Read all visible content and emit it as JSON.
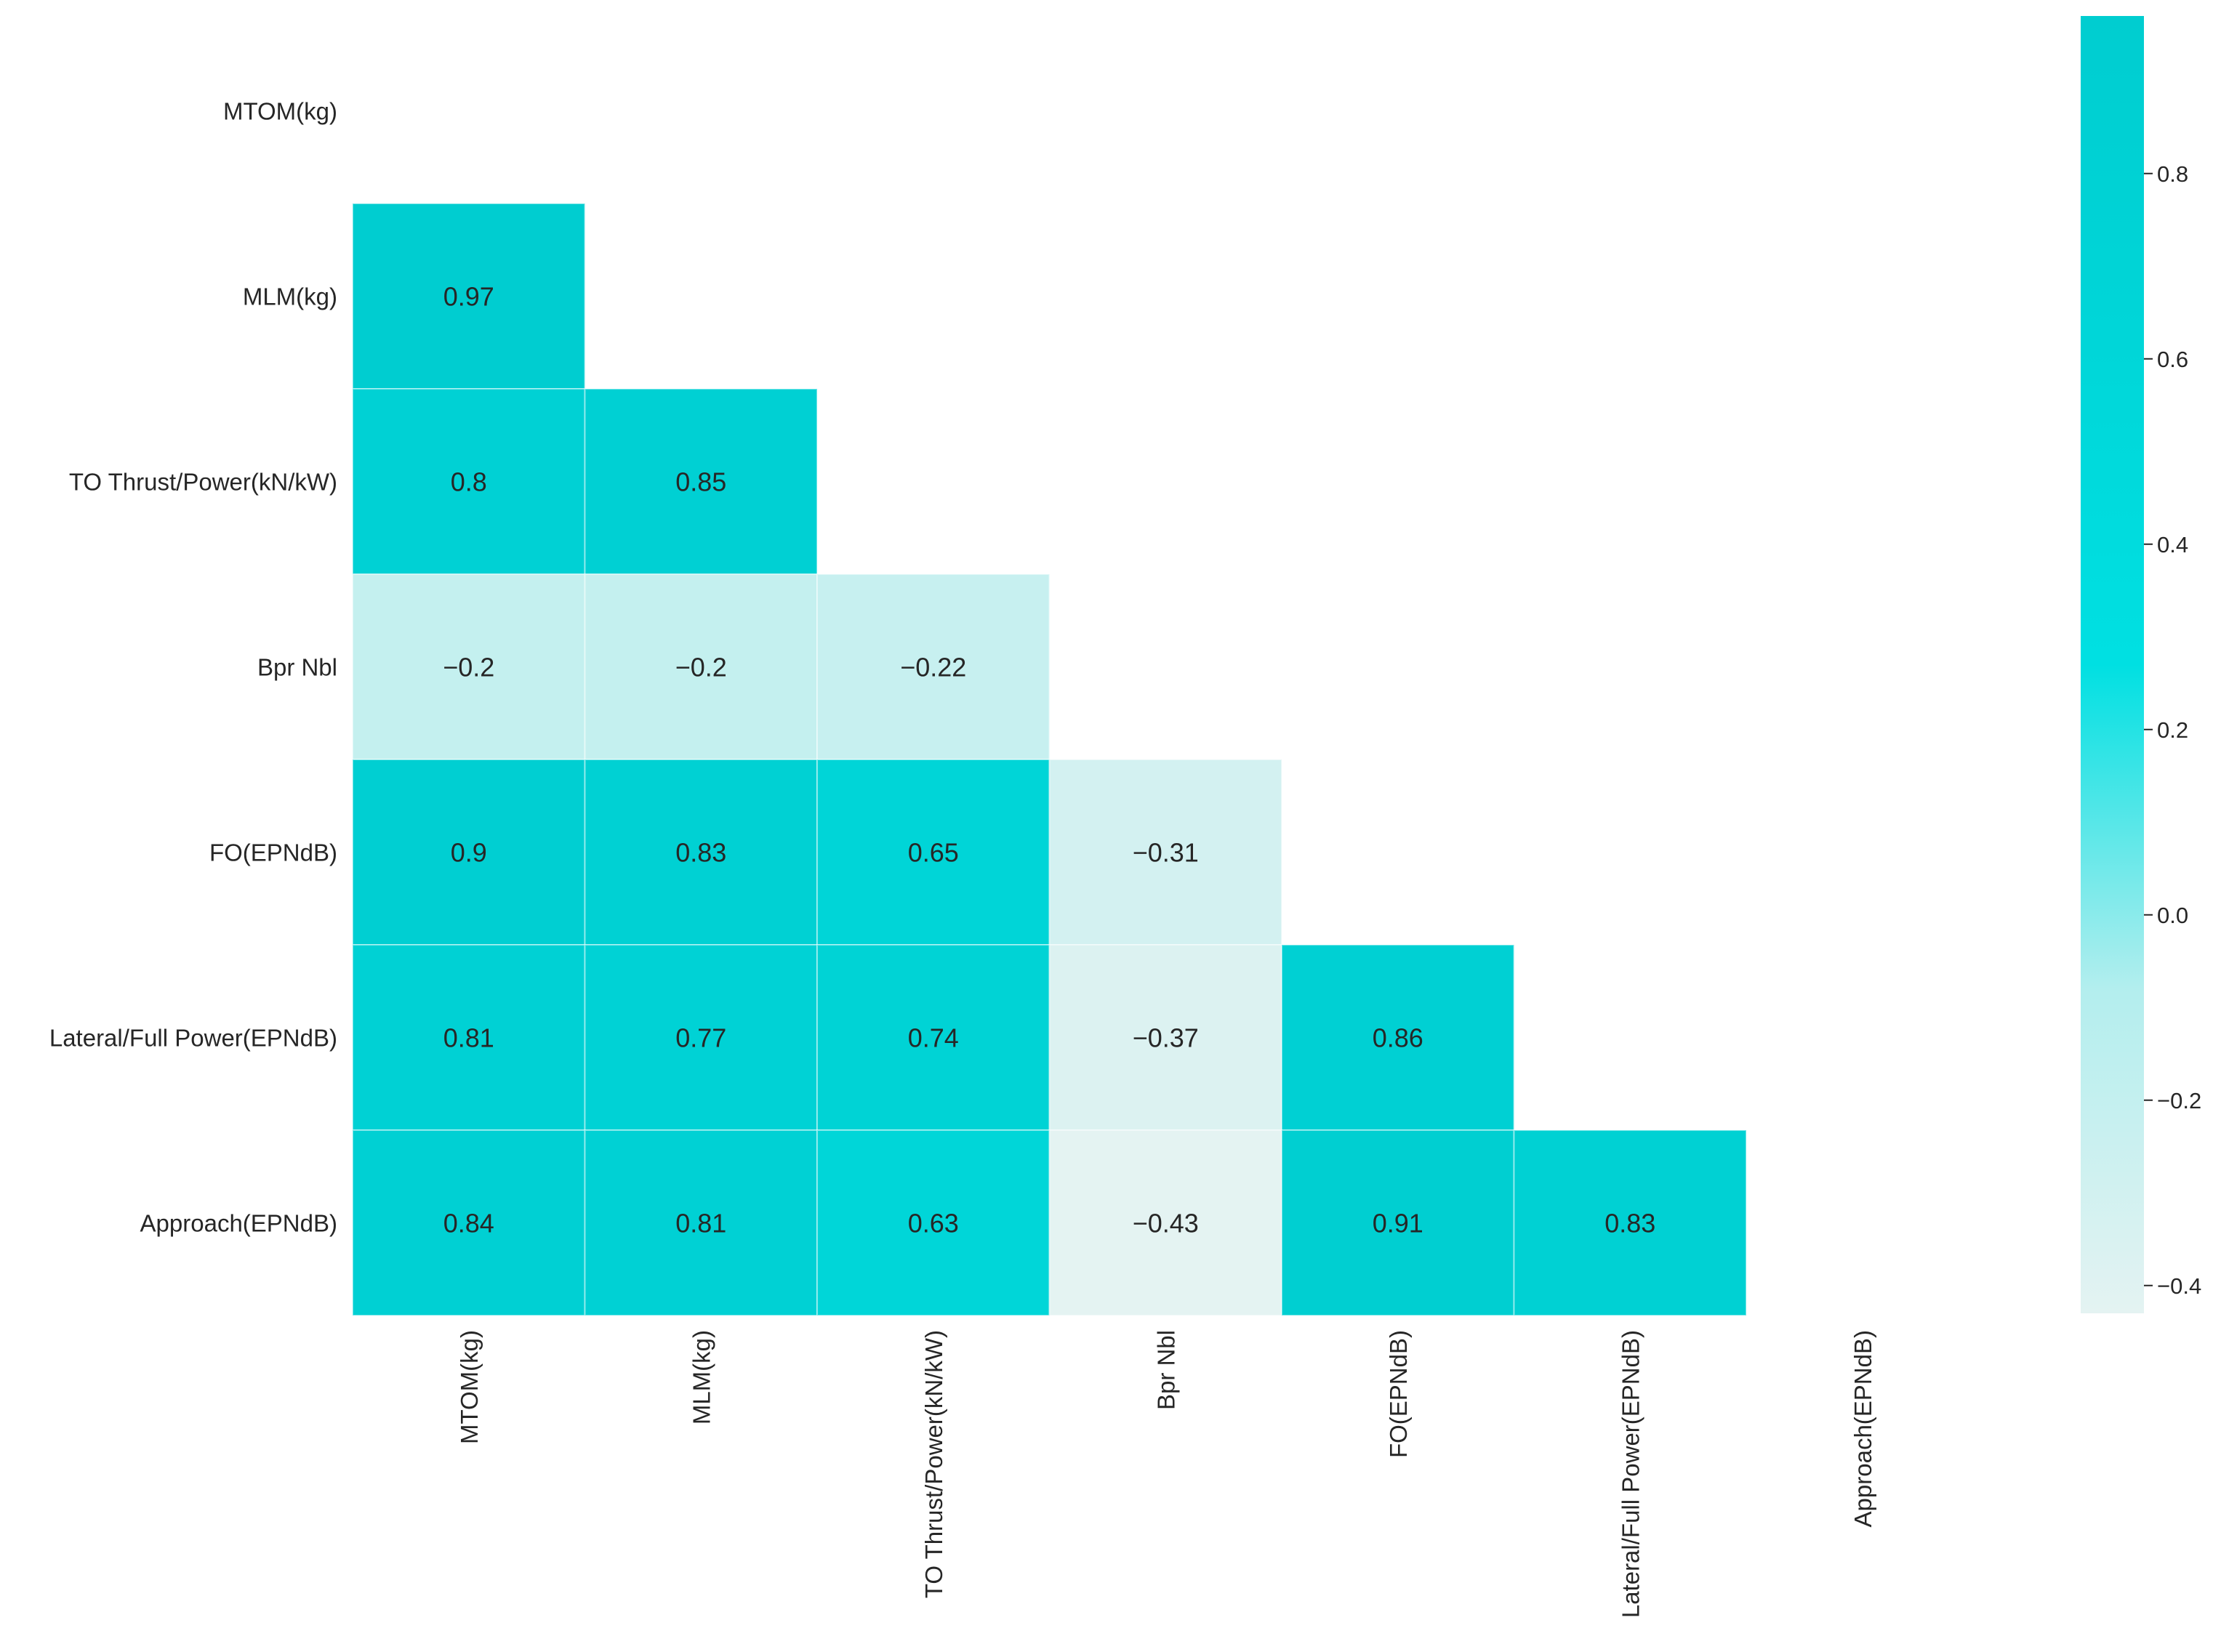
{
  "chart_data": {
    "type": "heatmap",
    "variant": "lower-triangle correlation matrix",
    "title": "",
    "xlabel": "",
    "ylabel": "",
    "row_labels": [
      "MTOM(kg)",
      "MLM(kg)",
      "TO Thrust/Power(kN/kW)",
      "Bpr Nbl",
      "FO(EPNdB)",
      "Lateral/Full Power(EPNdB)",
      "Approach(EPNdB)"
    ],
    "col_labels": [
      "MTOM(kg)",
      "MLM(kg)",
      "TO Thrust/Power(kN/kW)",
      "Bpr Nbl",
      "FO(EPNdB)",
      "Lateral/Full Power(EPNdB)",
      "Approach(EPNdB)"
    ],
    "cells": [
      {
        "row": 1,
        "col": 0,
        "value": 0.97,
        "label": "0.97"
      },
      {
        "row": 2,
        "col": 0,
        "value": 0.8,
        "label": "0.8"
      },
      {
        "row": 2,
        "col": 1,
        "value": 0.85,
        "label": "0.85"
      },
      {
        "row": 3,
        "col": 0,
        "value": -0.2,
        "label": "−0.2"
      },
      {
        "row": 3,
        "col": 1,
        "value": -0.2,
        "label": "−0.2"
      },
      {
        "row": 3,
        "col": 2,
        "value": -0.22,
        "label": "−0.22"
      },
      {
        "row": 4,
        "col": 0,
        "value": 0.9,
        "label": "0.9"
      },
      {
        "row": 4,
        "col": 1,
        "value": 0.83,
        "label": "0.83"
      },
      {
        "row": 4,
        "col": 2,
        "value": 0.65,
        "label": "0.65"
      },
      {
        "row": 4,
        "col": 3,
        "value": -0.31,
        "label": "−0.31"
      },
      {
        "row": 5,
        "col": 0,
        "value": 0.81,
        "label": "0.81"
      },
      {
        "row": 5,
        "col": 1,
        "value": 0.77,
        "label": "0.77"
      },
      {
        "row": 5,
        "col": 2,
        "value": 0.74,
        "label": "0.74"
      },
      {
        "row": 5,
        "col": 3,
        "value": -0.37,
        "label": "−0.37"
      },
      {
        "row": 5,
        "col": 4,
        "value": 0.86,
        "label": "0.86"
      },
      {
        "row": 6,
        "col": 0,
        "value": 0.84,
        "label": "0.84"
      },
      {
        "row": 6,
        "col": 1,
        "value": 0.81,
        "label": "0.81"
      },
      {
        "row": 6,
        "col": 2,
        "value": 0.63,
        "label": "0.63"
      },
      {
        "row": 6,
        "col": 3,
        "value": -0.43,
        "label": "−0.43"
      },
      {
        "row": 6,
        "col": 4,
        "value": 0.91,
        "label": "0.91"
      },
      {
        "row": 6,
        "col": 5,
        "value": 0.83,
        "label": "0.83"
      }
    ],
    "colorbar": {
      "min": -0.43,
      "max": 0.97,
      "ticks": [
        0.8,
        0.6,
        0.4,
        0.2,
        0.0,
        -0.2,
        -0.4
      ],
      "tick_labels": [
        "0.8",
        "0.6",
        "0.4",
        "0.2",
        "0.0",
        "−0.2",
        "−0.4"
      ],
      "colors": [
        "#e4f3f2",
        "#b3eeee",
        "#00e0e2",
        "#00d6d8",
        "#00cdd0"
      ]
    }
  }
}
